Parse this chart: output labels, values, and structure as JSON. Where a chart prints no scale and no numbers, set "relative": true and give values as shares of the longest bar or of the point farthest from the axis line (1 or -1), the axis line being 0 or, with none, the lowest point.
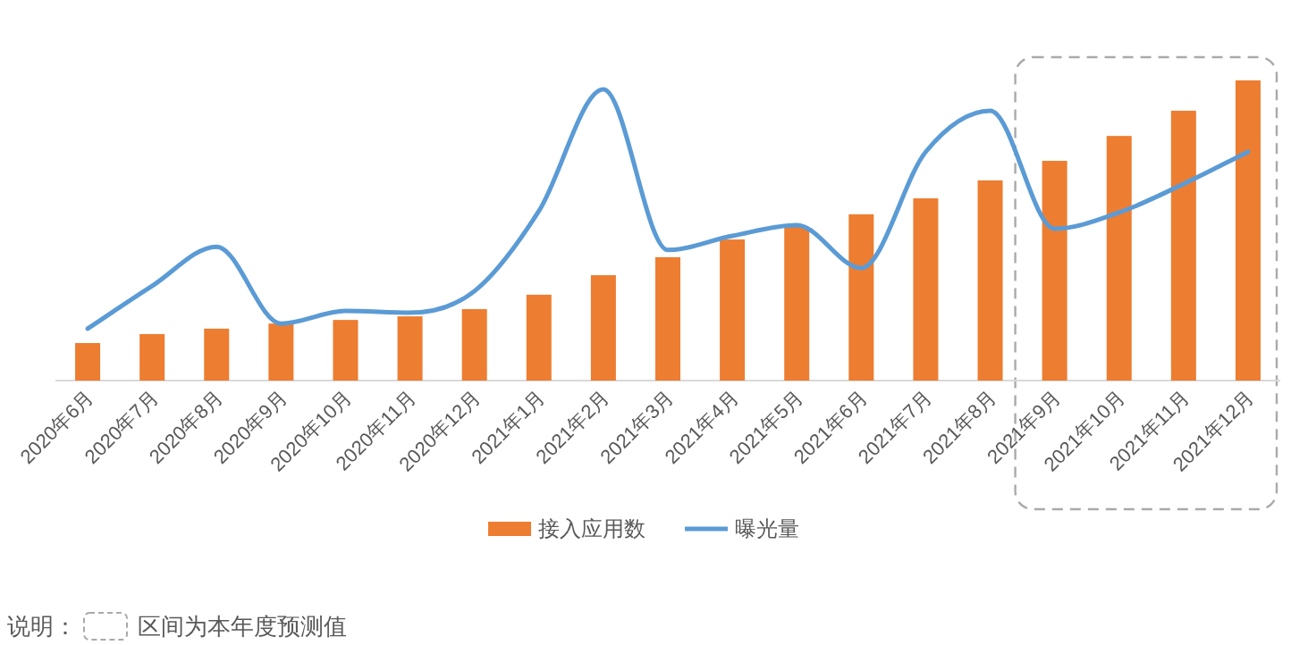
{
  "chart_data": {
    "type": "bar",
    "relative": true,
    "legend": "bottom",
    "categories": [
      "2020年6月",
      "2020年7月",
      "2020年8月",
      "2020年9月",
      "2020年10月",
      "2020年11月",
      "2020年12月",
      "2021年1月",
      "2021年2月",
      "2021年3月",
      "2021年4月",
      "2021年5月",
      "2021年6月",
      "2021年7月",
      "2021年8月",
      "2021年9月",
      "2021年10月",
      "2021年11月",
      "2021年12月"
    ],
    "series": [
      {
        "name": "接入应用数",
        "color": "#ed7d31",
        "values": [
          0.125,
          0.155,
          0.173,
          0.19,
          0.202,
          0.214,
          0.238,
          0.286,
          0.351,
          0.411,
          0.47,
          0.512,
          0.554,
          0.607,
          0.667,
          0.732,
          0.815,
          0.899,
          1
        ]
      },
      {
        "name": "曝光量",
        "type": "line",
        "color": "#5b9bd5",
        "values": [
          0.173,
          0.315,
          0.446,
          0.19,
          0.232,
          0.226,
          0.298,
          0.565,
          0.97,
          0.435,
          0.482,
          0.518,
          0.375,
          0.762,
          0.899,
          0.506,
          0.56,
          0.655,
          0.762
        ]
      }
    ],
    "annotations": [
      "说明：",
      "区间为本年度预测值"
    ]
  }
}
